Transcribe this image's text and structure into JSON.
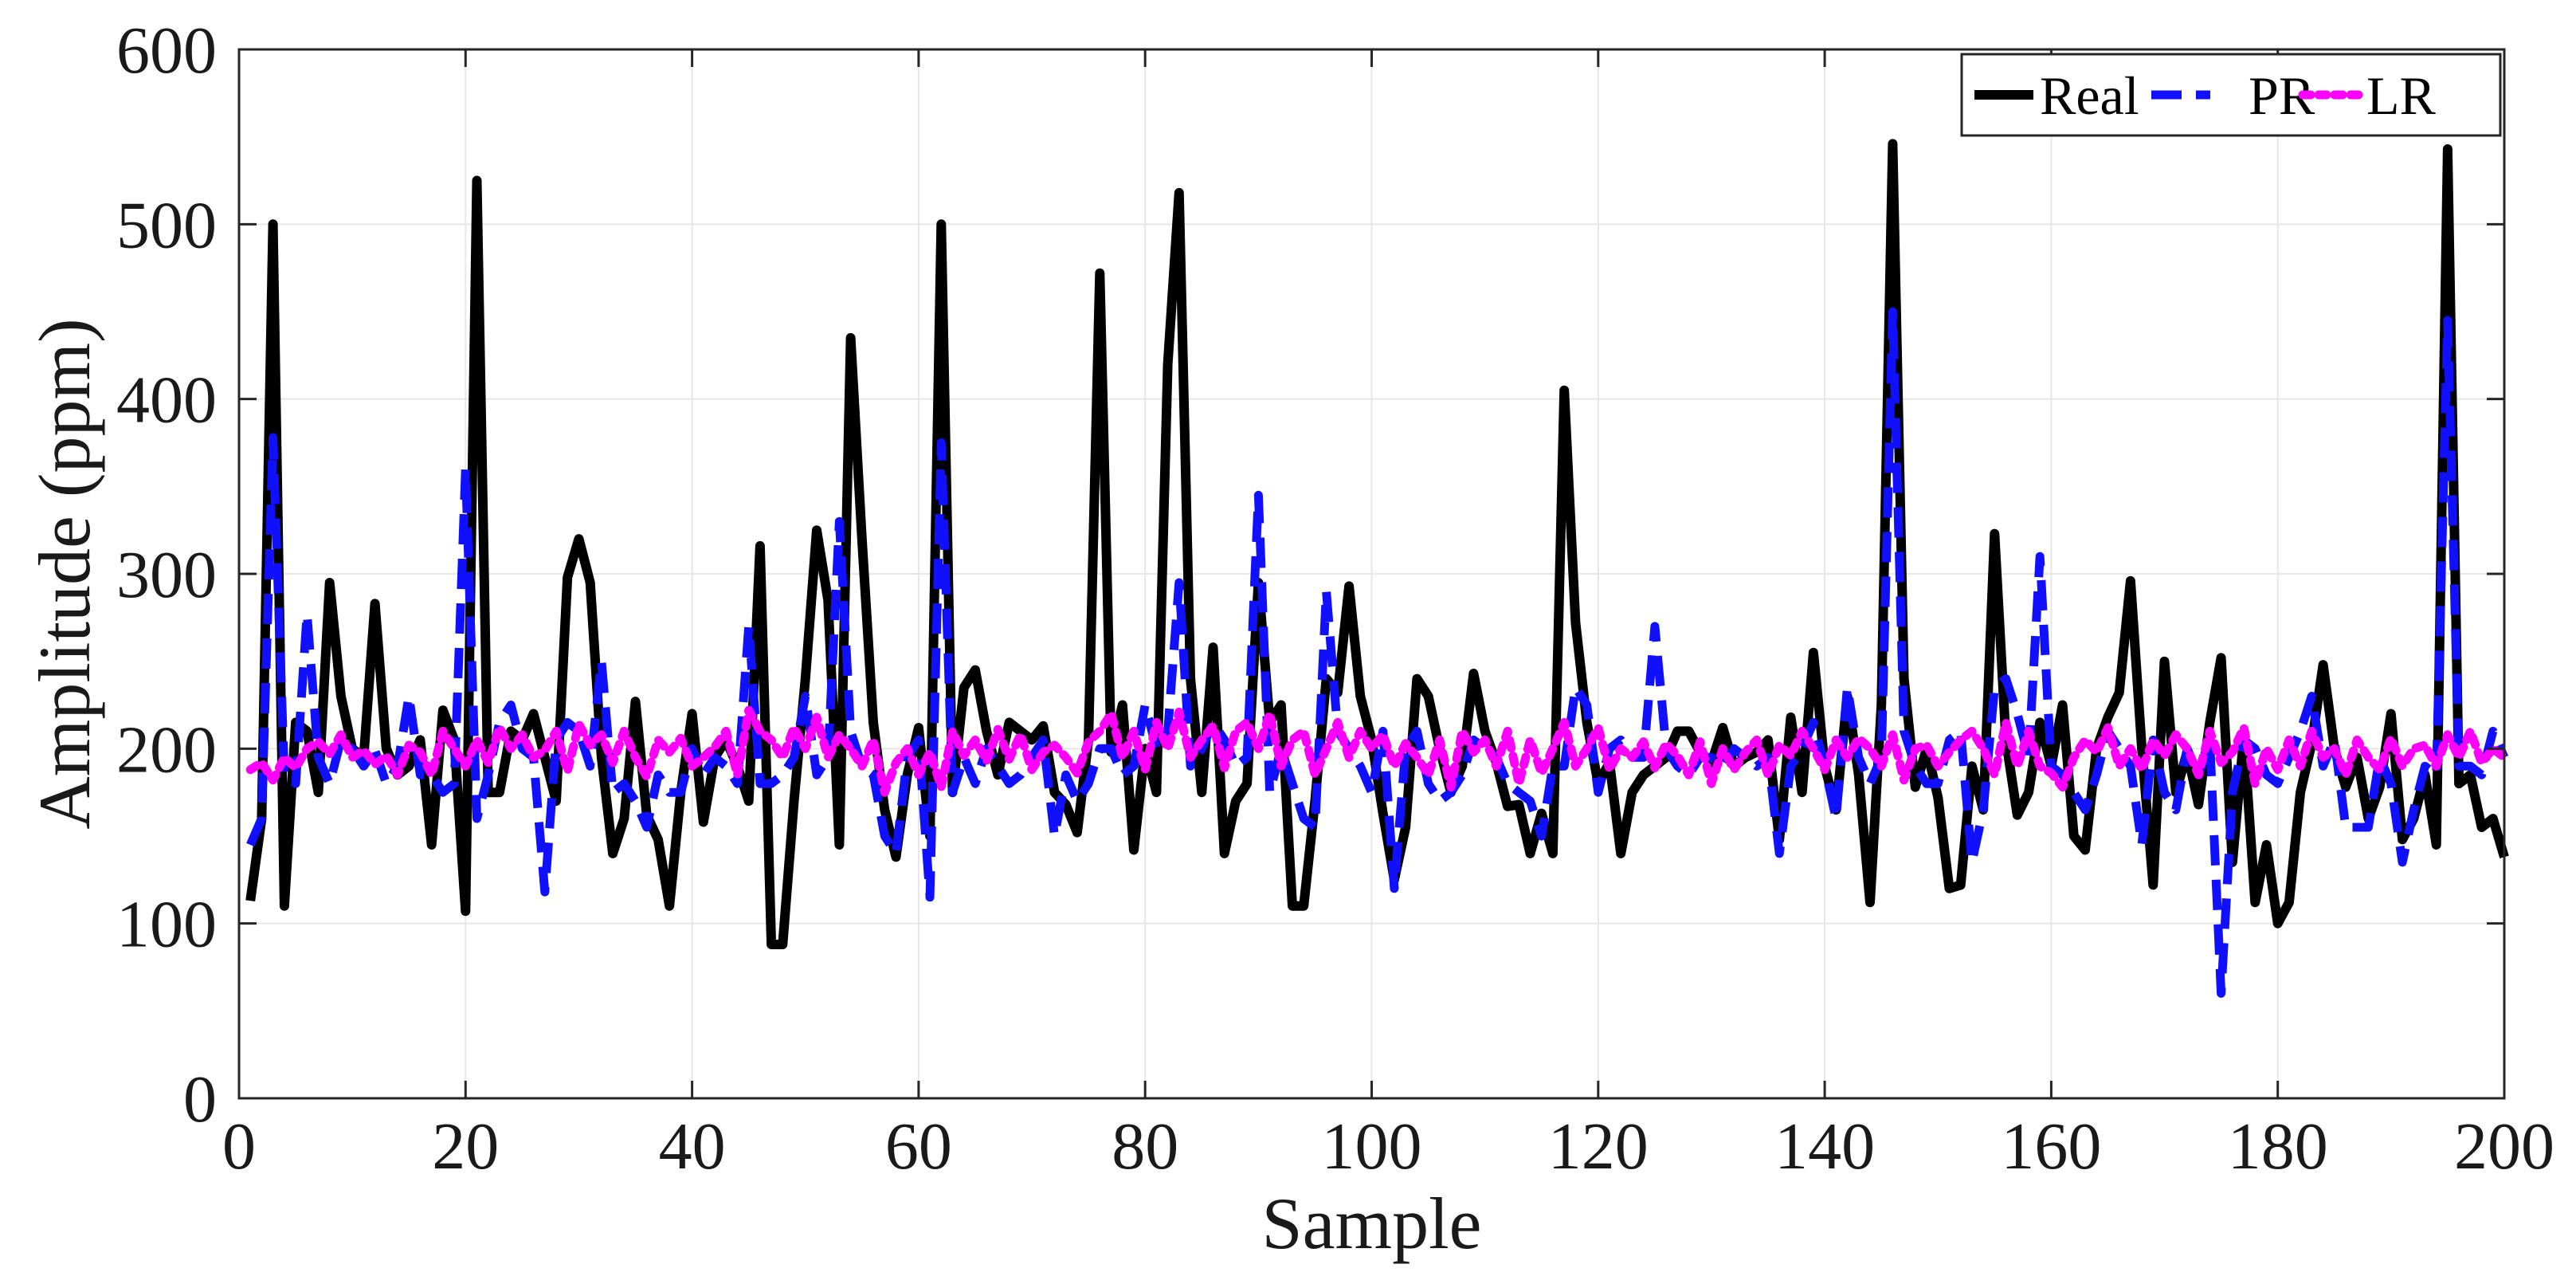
{
  "chart_data": {
    "type": "line",
    "title": "",
    "xlabel": "Sample",
    "ylabel": "Amplitude (ppm)",
    "xlim": [
      0,
      200
    ],
    "ylim": [
      0,
      600
    ],
    "xticks": [
      0,
      20,
      40,
      60,
      80,
      100,
      120,
      140,
      160,
      180,
      200
    ],
    "yticks": [
      0,
      100,
      200,
      300,
      400,
      500,
      600
    ],
    "grid": true,
    "legend_position": "top-right",
    "x": [
      1,
      2,
      3,
      4,
      5,
      6,
      7,
      8,
      9,
      10,
      11,
      12,
      13,
      14,
      15,
      16,
      17,
      18,
      19,
      20,
      21,
      22,
      23,
      24,
      25,
      26,
      27,
      28,
      29,
      30,
      31,
      32,
      33,
      34,
      35,
      36,
      37,
      38,
      39,
      40,
      41,
      42,
      43,
      44,
      45,
      46,
      47,
      48,
      49,
      50,
      51,
      52,
      53,
      54,
      55,
      56,
      57,
      58,
      59,
      60,
      61,
      62,
      63,
      64,
      65,
      66,
      67,
      68,
      69,
      70,
      71,
      72,
      73,
      74,
      75,
      76,
      77,
      78,
      79,
      80,
      81,
      82,
      83,
      84,
      85,
      86,
      87,
      88,
      89,
      90,
      91,
      92,
      93,
      94,
      95,
      96,
      97,
      98,
      99,
      100,
      101,
      102,
      103,
      104,
      105,
      106,
      107,
      108,
      109,
      110,
      111,
      112,
      113,
      114,
      115,
      116,
      117,
      118,
      119,
      120,
      121,
      122,
      123,
      124,
      125,
      126,
      127,
      128,
      129,
      130,
      131,
      132,
      133,
      134,
      135,
      136,
      137,
      138,
      139,
      140,
      141,
      142,
      143,
      144,
      145,
      146,
      147,
      148,
      149,
      150,
      151,
      152,
      153,
      154,
      155,
      156,
      157,
      158,
      159,
      160,
      161,
      162,
      163,
      164,
      165,
      166,
      167,
      168,
      169,
      170,
      171,
      172,
      173,
      174,
      175,
      176,
      177,
      178,
      179,
      180,
      181,
      182,
      183,
      184,
      185,
      186,
      187,
      188,
      189,
      190,
      191,
      192,
      193,
      194,
      195,
      196,
      197,
      198,
      199,
      200
    ],
    "series": [
      {
        "name": "Real",
        "color": "#000000",
        "style": "solid",
        "values": [
          113,
          160,
          500,
          110,
          215,
          210,
          175,
          295,
          230,
          200,
          195,
          283,
          200,
          185,
          190,
          205,
          145,
          222,
          205,
          107,
          525,
          175,
          175,
          210,
          205,
          220,
          195,
          170,
          298,
          320,
          295,
          195,
          140,
          160,
          227,
          162,
          148,
          110,
          175,
          220,
          158,
          195,
          205,
          190,
          170,
          316,
          88,
          88,
          170,
          240,
          325,
          285,
          145,
          435,
          320,
          215,
          165,
          138,
          185,
          212,
          150,
          500,
          175,
          235,
          245,
          210,
          185,
          215,
          210,
          205,
          213,
          175,
          168,
          152,
          205,
          472,
          198,
          225,
          142,
          200,
          175,
          420,
          518,
          240,
          175,
          258,
          140,
          170,
          180,
          295,
          215,
          225,
          110,
          110,
          170,
          240,
          232,
          293,
          230,
          205,
          163,
          125,
          155,
          240,
          230,
          200,
          175,
          190,
          243,
          210,
          192,
          167,
          168,
          140,
          163,
          140,
          405,
          272,
          215,
          180,
          192,
          140,
          175,
          185,
          190,
          195,
          210,
          210,
          198,
          192,
          212,
          190,
          195,
          198,
          205,
          148,
          218,
          175,
          255,
          190,
          165,
          230,
          185,
          112,
          225,
          546,
          240,
          178,
          200,
          172,
          120,
          122,
          190,
          165,
          323,
          205,
          162,
          175,
          215,
          190,
          225,
          150,
          142,
          200,
          218,
          232,
          296,
          200,
          122,
          250,
          175,
          198,
          168,
          215,
          252,
          135,
          207,
          112,
          145,
          100,
          112,
          175,
          203,
          248,
          200,
          178,
          195,
          160,
          178,
          220,
          148,
          160,
          185,
          145,
          543,
          180,
          185,
          155,
          160,
          138
        ]
      },
      {
        "name": "PR",
        "color": "#1010ff",
        "style": "dashed",
        "values": [
          145,
          160,
          378,
          185,
          180,
          277,
          195,
          180,
          205,
          200,
          190,
          199,
          180,
          190,
          230,
          185,
          185,
          175,
          180,
          360,
          160,
          185,
          215,
          225,
          200,
          195,
          118,
          205,
          215,
          210,
          190,
          250,
          175,
          180,
          170,
          155,
          185,
          175,
          175,
          200,
          185,
          195,
          190,
          180,
          270,
          180,
          180,
          185,
          195,
          230,
          185,
          195,
          330,
          210,
          190,
          185,
          150,
          140,
          195,
          205,
          115,
          375,
          175,
          195,
          180,
          200,
          190,
          180,
          185,
          195,
          205,
          150,
          185,
          170,
          180,
          200,
          200,
          185,
          190,
          225,
          200,
          210,
          295,
          190,
          200,
          215,
          205,
          190,
          195,
          345,
          175,
          200,
          180,
          160,
          155,
          290,
          210,
          200,
          190,
          175,
          210,
          120,
          200,
          210,
          180,
          170,
          175,
          185,
          205,
          200,
          195,
          180,
          175,
          170,
          150,
          190,
          190,
          235,
          225,
          175,
          200,
          205,
          195,
          195,
          270,
          200,
          190,
          185,
          195,
          195,
          190,
          200,
          195,
          190,
          195,
          140,
          190,
          200,
          215,
          190,
          160,
          235,
          195,
          180,
          195,
          450,
          210,
          190,
          180,
          180,
          205,
          210,
          135,
          165,
          235,
          240,
          220,
          195,
          310,
          190,
          185,
          175,
          165,
          185,
          210,
          200,
          190,
          145,
          205,
          175,
          165,
          200,
          185,
          205,
          60,
          175,
          205,
          200,
          185,
          180,
          195,
          210,
          230,
          190,
          205,
          155,
          155,
          155,
          195,
          180,
          135,
          165,
          190,
          185,
          445,
          190,
          190,
          185,
          210,
          195
        ]
      },
      {
        "name": "LR",
        "color": "#ff00ff",
        "style": "dotted",
        "values": [
          188,
          192,
          182,
          195,
          189,
          200,
          204,
          197,
          208,
          195,
          199,
          191,
          196,
          185,
          202,
          198,
          185,
          210,
          200,
          190,
          205,
          192,
          212,
          200,
          208,
          195,
          199,
          210,
          187,
          214,
          202,
          208,
          192,
          210,
          195,
          184,
          205,
          198,
          206,
          190,
          195,
          201,
          210,
          185,
          222,
          210,
          205,
          195,
          212,
          200,
          218,
          195,
          208,
          200,
          190,
          205,
          175,
          192,
          200,
          185,
          198,
          178,
          210,
          196,
          205,
          193,
          211,
          194,
          208,
          188,
          198,
          202,
          195,
          186,
          204,
          210,
          220,
          195,
          210,
          188,
          215,
          200,
          221,
          195,
          205,
          213,
          189,
          210,
          215,
          200,
          220,
          190,
          205,
          210,
          185,
          200,
          215,
          195,
          210,
          200,
          208,
          190,
          203,
          195,
          185,
          205,
          178,
          210,
          198,
          205,
          190,
          210,
          180,
          205,
          186,
          200,
          215,
          190,
          200,
          212,
          188,
          200,
          195,
          204,
          189,
          203,
          196,
          185,
          204,
          180,
          200,
          188,
          198,
          205,
          185,
          202,
          196,
          210,
          200,
          188,
          205,
          195,
          206,
          200,
          190,
          208,
          182,
          200,
          202,
          190,
          198,
          205,
          210,
          200,
          185,
          215,
          190,
          210,
          190,
          186,
          178,
          195,
          205,
          198,
          212,
          190,
          200,
          188,
          205,
          196,
          208,
          200,
          185,
          210,
          192,
          198,
          212,
          180,
          200,
          188,
          205,
          190,
          210,
          195,
          200,
          185,
          205,
          195,
          188,
          206,
          190,
          200,
          202,
          190,
          208,
          195,
          210,
          192,
          200,
          195
        ]
      }
    ]
  }
}
